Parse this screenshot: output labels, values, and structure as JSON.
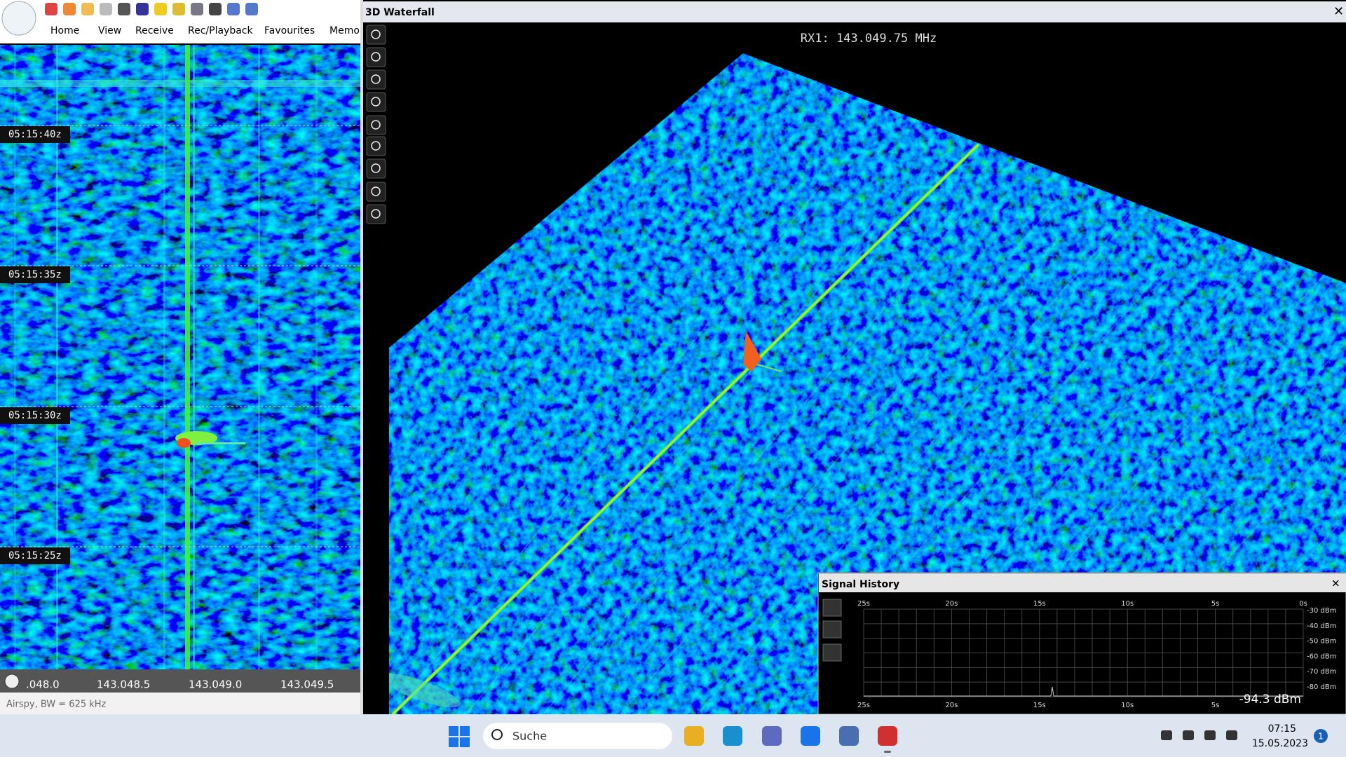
{
  "toolbar": {
    "menu": [
      "Home",
      "View",
      "Receive",
      "Rec/Playback",
      "Favourites",
      "Memor"
    ]
  },
  "waterfall": {
    "time_labels": [
      "05:15:40z",
      "05:15:35z",
      "05:15:30z",
      "05:15:25z"
    ],
    "frequency_labels": [
      ".048.0",
      "143.048.5",
      "143.049.0",
      "143.049.5"
    ],
    "status": "Airspy, BW = 625 kHz"
  },
  "waterfall_3d": {
    "title": "3D Waterfall",
    "frequency_label": "RX1: 143.049.75 MHz"
  },
  "signal_history": {
    "title": "Signal History",
    "time_ticks": [
      "25s",
      "20s",
      "15s",
      "10s",
      "5s",
      "0s"
    ],
    "level_ticks": [
      "-30 dBm",
      "-40 dBm",
      "-50 dBm",
      "-60 dBm",
      "-70 dBm",
      "-80 dBm"
    ],
    "reading": "-94.3 dBm"
  },
  "taskbar": {
    "search": "Suche",
    "time": "07:15",
    "date": "15.05.2023",
    "notifications": "1"
  }
}
